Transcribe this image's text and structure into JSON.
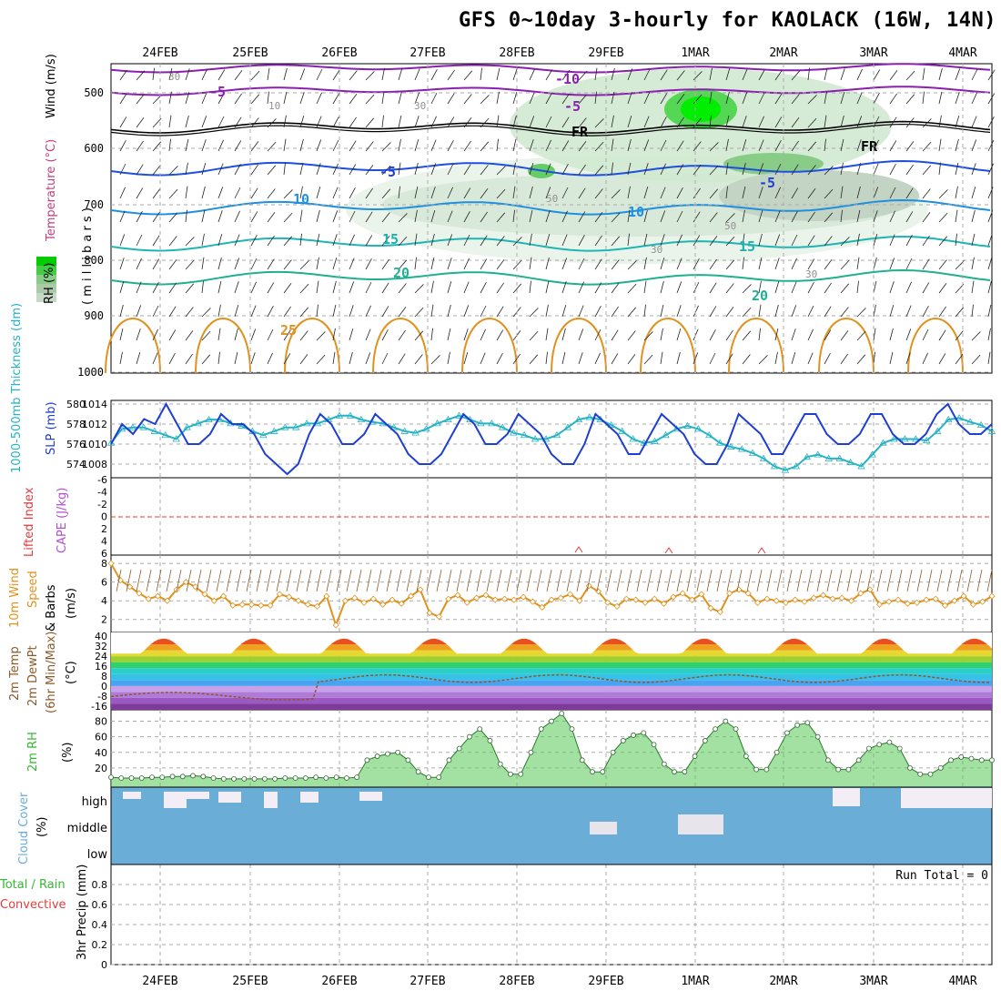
{
  "title": "GFS 0~10day 3-hourly for KAOLACK (16W, 14N)",
  "dates": [
    "24FEB",
    "25FEB",
    "26FEB",
    "27FEB",
    "28FEB",
    "29FEB",
    "1MAR",
    "2MAR",
    "3MAR",
    "4MAR"
  ],
  "colors": {
    "dewpoint_brown": "#8b5a2b",
    "wind_orange": "#e0921e",
    "slp_blue": "#1f3fd0",
    "thickness_cyan": "#27b3c4",
    "rh_green": "#33b833",
    "cloud_blue": "#6aadd6",
    "lifted_red": "#e03c3c",
    "cape_violet": "#b24fd0"
  },
  "panels": {
    "upper": {
      "ylabel_wind": "Wind (m/s)",
      "ylabel_temp": "Temperature (°C)",
      "ylabel_rh": "RH (%)",
      "ylabel_pressure": "( m i l l i b a r s )",
      "ticks": [
        "500",
        "600",
        "700",
        "800",
        "900",
        "1000"
      ],
      "contour_labels": [
        {
          "text": "-10",
          "color": "#8a1fb0"
        },
        {
          "text": "-5",
          "color": "#8a1fb0"
        },
        {
          "text": "-5",
          "color": "#8a1fb0"
        },
        {
          "text": "FR",
          "color": "#000000"
        },
        {
          "text": "FR",
          "color": "#000000"
        },
        {
          "text": "-5",
          "color": "#1f3fd0"
        },
        {
          "text": "-5",
          "color": "#1f3fd0"
        },
        {
          "text": "10",
          "color": "#1f8fe0"
        },
        {
          "text": "10",
          "color": "#1f8fe0"
        },
        {
          "text": "15",
          "color": "#20b0b0"
        },
        {
          "text": "15",
          "color": "#20b0b0"
        },
        {
          "text": "20",
          "color": "#20b090"
        },
        {
          "text": "20",
          "color": "#20b090"
        },
        {
          "text": "25",
          "color": "#e0921e"
        },
        {
          "text": "30",
          "color": "#909090"
        },
        {
          "text": "30",
          "color": "#909090"
        },
        {
          "text": "10",
          "color": "#909090"
        },
        {
          "text": "50",
          "color": "#909090"
        },
        {
          "text": "30",
          "color": "#909090"
        },
        {
          "text": "50",
          "color": "#909090"
        },
        {
          "text": "30",
          "color": "#909090"
        }
      ]
    },
    "pressure": {
      "ylabel_thickness": "1000-500mb Thickness (dm)",
      "ylabel_slp": "SLP (mb)",
      "left_ticks": [
        "580",
        "578",
        "576",
        "574"
      ],
      "right_ticks": [
        "1014",
        "1012",
        "1010",
        "1008"
      ]
    },
    "stability": {
      "ylabel_li": "Lifted Index",
      "ylabel_cape": "CAPE (J/kg)",
      "ticks": [
        "-6",
        "-4",
        "-2",
        "0",
        "2",
        "4",
        "6"
      ]
    },
    "wind10": {
      "ylabel1": "10m Wind",
      "ylabel2": "Speed",
      "ylabel3": "& Barbs",
      "unit": "(m/s)",
      "ticks": [
        "8",
        "6",
        "4",
        "2"
      ]
    },
    "temp2m": {
      "ylabel1": "2m Temp",
      "ylabel2": "2m DewPt",
      "ylabel3": "(6hr Min/Max)",
      "unit": "(°C)",
      "ticks": [
        "40",
        "32",
        "24",
        "16",
        "8",
        "0",
        "-8",
        "-16"
      ]
    },
    "rh2m": {
      "ylabel": "2m RH",
      "unit": "(%)",
      "ticks": [
        "80",
        "60",
        "40",
        "20"
      ]
    },
    "cloud": {
      "ylabel": "Cloud Cover",
      "unit": "(%)",
      "levels": [
        "high",
        "middle",
        "low"
      ]
    },
    "precip": {
      "ylabel_main": "3hr Precip (mm)",
      "ylabel_total": "Total / Rain",
      "ylabel_conv": "Convective",
      "run_total": "Run Total = 0",
      "ticks": [
        "0.8",
        "0.6",
        "0.4",
        "0.2",
        "0"
      ]
    }
  },
  "chart_data": [
    {
      "type": "line",
      "name": "SLP",
      "unit": "mb",
      "x_step_hours": 3,
      "values": [
        1010,
        1012,
        1011,
        1012.5,
        1012,
        1014,
        1012,
        1010,
        1010,
        1011,
        1013,
        1012,
        1012,
        1011,
        1009,
        1008,
        1007,
        1008,
        1011,
        1013,
        1012,
        1010,
        1010,
        1011,
        1013,
        1012,
        1011,
        1009,
        1008,
        1008,
        1009,
        1011,
        1013,
        1012,
        1010,
        1010,
        1011,
        1013,
        1012,
        1011,
        1009,
        1008,
        1008,
        1010,
        1013,
        1012,
        1011,
        1009,
        1009,
        1011,
        1013,
        1012,
        1011,
        1009,
        1008,
        1008,
        1010,
        1013,
        1012,
        1011,
        1009,
        1009,
        1011,
        1013,
        1013,
        1011,
        1010,
        1010,
        1011,
        1013,
        1013,
        1011,
        1010,
        1010,
        1011,
        1013,
        1014,
        1012,
        1011,
        1011,
        1012
      ],
      "ylim": [
        1007,
        1014
      ]
    },
    {
      "type": "line",
      "name": "1000-500mb Thickness",
      "unit": "dm",
      "x_step_hours": 3,
      "values": [
        576,
        577.8,
        578,
        578,
        577.5,
        577,
        576.5,
        578,
        578.5,
        579,
        579,
        578.5,
        578.2,
        577.5,
        577,
        577.5,
        578,
        578,
        578.5,
        578.5,
        579,
        579.5,
        579.5,
        579,
        578.7,
        578.5,
        578,
        577.5,
        577.3,
        577.8,
        578.5,
        579,
        579.5,
        579,
        578.5,
        578.5,
        578,
        577.3,
        577,
        576.5,
        576.5,
        577,
        578,
        579,
        579.3,
        579,
        578.3,
        577.5,
        576.5,
        576,
        576.2,
        577,
        577.8,
        578.2,
        577.8,
        577,
        576,
        575.5,
        575.2,
        574.7,
        574,
        573,
        572.5,
        573,
        574.2,
        574.5,
        574,
        574,
        573.5,
        573,
        574.5,
        576,
        576.5,
        576.5,
        576.5,
        576.3,
        577.5,
        579,
        579.2,
        578.7,
        578.3,
        577.5
      ],
      "ylim": [
        572,
        581
      ]
    },
    {
      "type": "line",
      "name": "10m Wind Speed",
      "unit": "m/s",
      "x_step_hours": 3,
      "values": [
        8,
        6.2,
        5.5,
        4.8,
        4.2,
        4.5,
        4,
        5.2,
        6,
        5.5,
        4.7,
        4,
        4.5,
        3.5,
        3.6,
        3.6,
        3.5,
        3.5,
        4.7,
        4.4,
        4,
        3.6,
        3.4,
        4.5,
        1.4,
        4,
        4.3,
        3.8,
        4.2,
        3.6,
        4.1,
        3.7,
        4.5,
        5.2,
        2.7,
        2.3,
        4.2,
        4.6,
        3.8,
        4.3,
        4.6,
        4.1,
        4.2,
        4.1,
        4.4,
        3.9,
        3.3,
        4.1,
        4.3,
        4.7,
        4,
        5.6,
        5,
        3.8,
        3.4,
        4.2,
        4.1,
        3.8,
        4.2,
        3.7,
        4.4,
        4.8,
        4.1,
        4.7,
        3.2,
        2.8,
        4.8,
        5.2,
        4.8,
        3.8,
        4.2,
        4,
        3.8,
        4.1,
        3.9,
        4.3,
        4.6,
        4.2,
        4.3,
        4,
        4.8,
        5.2,
        3.6,
        3.9,
        4.1,
        3.7,
        3.8,
        4.1,
        4.2,
        3.5,
        4,
        4.5,
        3.6,
        3.9,
        4.5
      ],
      "ylim": [
        1,
        8.5
      ]
    },
    {
      "type": "area",
      "name": "2m RH",
      "unit": "%",
      "x_step_hours": 3,
      "values": [
        8,
        7,
        7,
        7,
        8,
        8,
        9,
        9,
        10,
        9,
        7,
        6,
        6,
        6,
        6,
        6,
        6,
        7,
        7,
        7,
        8,
        7,
        8,
        7,
        8,
        30,
        35,
        38,
        40,
        30,
        15,
        8,
        8,
        30,
        45,
        60,
        70,
        55,
        25,
        12,
        12,
        40,
        70,
        80,
        90,
        70,
        30,
        15,
        15,
        40,
        55,
        62,
        65,
        50,
        25,
        15,
        15,
        35,
        55,
        70,
        80,
        70,
        35,
        18,
        18,
        40,
        65,
        75,
        78,
        60,
        30,
        18,
        18,
        30,
        45,
        50,
        53,
        45,
        20,
        12,
        12,
        20,
        30,
        34,
        32,
        30,
        30
      ],
      "ylim": [
        0,
        90
      ]
    },
    {
      "type": "area",
      "name": "3hr Precip",
      "unit": "mm",
      "values": [],
      "ylim": [
        0,
        1.0
      ]
    }
  ]
}
